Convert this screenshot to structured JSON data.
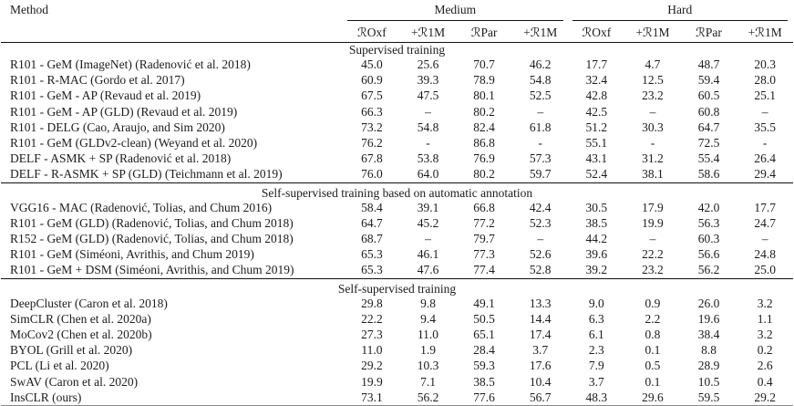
{
  "table": {
    "method_header": "Method",
    "col_groups": [
      {
        "label": "Medium"
      },
      {
        "label": "Hard"
      }
    ],
    "sub_headers": [
      "ℛOxf",
      "+ℛ1M",
      "ℛPar",
      "+ℛ1M",
      "ℛOxf",
      "+ℛ1M",
      "ℛPar",
      "+ℛ1M"
    ],
    "sections": [
      {
        "title": "Supervised training",
        "rows": [
          {
            "method": "R101 - GeM (ImageNet) (Radenović et al. 2018)",
            "values": [
              "45.0",
              "25.6",
              "70.7",
              "46.2",
              "17.7",
              "4.7",
              "48.7",
              "20.3"
            ]
          },
          {
            "method": "R101 - R-MAC (Gordo et al. 2017)",
            "values": [
              "60.9",
              "39.3",
              "78.9",
              "54.8",
              "32.4",
              "12.5",
              "59.4",
              "28.0"
            ]
          },
          {
            "method": "R101 - GeM - AP (Revaud et al. 2019)",
            "values": [
              "67.5",
              "47.5",
              "80.1",
              "52.5",
              "42.8",
              "23.2",
              "60.5",
              "25.1"
            ]
          },
          {
            "method": "R101 - GeM - AP (GLD) (Revaud et al. 2019)",
            "values": [
              "66.3",
              "–",
              "80.2",
              "–",
              "42.5",
              "–",
              "60.8",
              "–"
            ]
          },
          {
            "method": "R101 - DELG (Cao, Araujo, and Sim 2020)",
            "values": [
              "73.2",
              "54.8",
              "82.4",
              "61.8",
              "51.2",
              "30.3",
              "64.7",
              "35.5"
            ]
          },
          {
            "method": "R101 - GeM (GLDv2-clean) (Weyand et al. 2020)",
            "values": [
              "76.2",
              "-",
              "86.8",
              "-",
              "55.1",
              "-",
              "72.5",
              "-"
            ]
          },
          {
            "method": "DELF - ASMK + SP (Radenović et al. 2018)",
            "values": [
              "67.8",
              "53.8",
              "76.9",
              "57.3",
              "43.1",
              "31.2",
              "55.4",
              "26.4"
            ]
          },
          {
            "method": "DELF - R-ASMK + SP (GLD) (Teichmann et al. 2019)",
            "values": [
              "76.0",
              "64.0",
              "80.2",
              "59.7",
              "52.4",
              "38.1",
              "58.6",
              "29.4"
            ]
          }
        ]
      },
      {
        "title": "Self-supervised training based on automatic annotation",
        "rows": [
          {
            "method": "VGG16 - MAC (Radenović, Tolias, and Chum 2016)",
            "values": [
              "58.4",
              "39.1",
              "66.8",
              "42.4",
              "30.5",
              "17.9",
              "42.0",
              "17.7"
            ]
          },
          {
            "method": "R101 - GeM (GLD) (Radenović, Tolias, and Chum 2018)",
            "values": [
              "64.7",
              "45.2",
              "77.2",
              "52.3",
              "38.5",
              "19.9",
              "56.3",
              "24.7"
            ]
          },
          {
            "method": "R152 - GeM (GLD) (Radenović, Tolias, and Chum 2018)",
            "values": [
              "68.7",
              "–",
              "79.7",
              "–",
              "44.2",
              "–",
              "60.3",
              "–"
            ]
          },
          {
            "method": "R101 - GeM (Siméoni, Avrithis, and Chum 2019)",
            "values": [
              "65.3",
              "46.1",
              "77.3",
              "52.6",
              "39.6",
              "22.2",
              "56.6",
              "24.8"
            ]
          },
          {
            "method": "R101 - GeM + DSM (Siméoni, Avrithis, and Chum 2019)",
            "values": [
              "65.3",
              "47.6",
              "77.4",
              "52.8",
              "39.2",
              "23.2",
              "56.2",
              "25.0"
            ]
          }
        ]
      },
      {
        "title": "Self-supervised training",
        "rows": [
          {
            "method": "DeepCluster (Caron et al. 2018)",
            "values": [
              "29.8",
              "9.8",
              "49.1",
              "13.3",
              "9.0",
              "0.9",
              "26.0",
              "3.2"
            ]
          },
          {
            "method": "SimCLR (Chen et al. 2020a)",
            "values": [
              "22.2",
              "9.4",
              "50.5",
              "14.4",
              "6.3",
              "2.2",
              "19.6",
              "1.1"
            ]
          },
          {
            "method": "MoCov2 (Chen et al. 2020b)",
            "values": [
              "27.3",
              "11.0",
              "65.1",
              "17.4",
              "6.1",
              "0.8",
              "38.4",
              "3.2"
            ]
          },
          {
            "method": "BYOL (Grill et al. 2020)",
            "values": [
              "11.0",
              "1.9",
              "28.4",
              "3.7",
              "2.3",
              "0.1",
              "8.8",
              "0.2"
            ]
          },
          {
            "method": "PCL (Li et al. 2020)",
            "values": [
              "29.2",
              "10.3",
              "59.3",
              "17.6",
              "7.9",
              "0.5",
              "28.9",
              "2.6"
            ]
          },
          {
            "method": "SwAV (Caron et al. 2020)",
            "values": [
              "19.9",
              "7.1",
              "38.5",
              "10.4",
              "3.7",
              "0.1",
              "10.5",
              "0.4"
            ]
          },
          {
            "method": "InsCLR (ours)",
            "values": [
              "73.1",
              "56.2",
              "77.6",
              "56.7",
              "48.3",
              "29.6",
              "59.5",
              "29.2"
            ]
          }
        ]
      }
    ]
  }
}
